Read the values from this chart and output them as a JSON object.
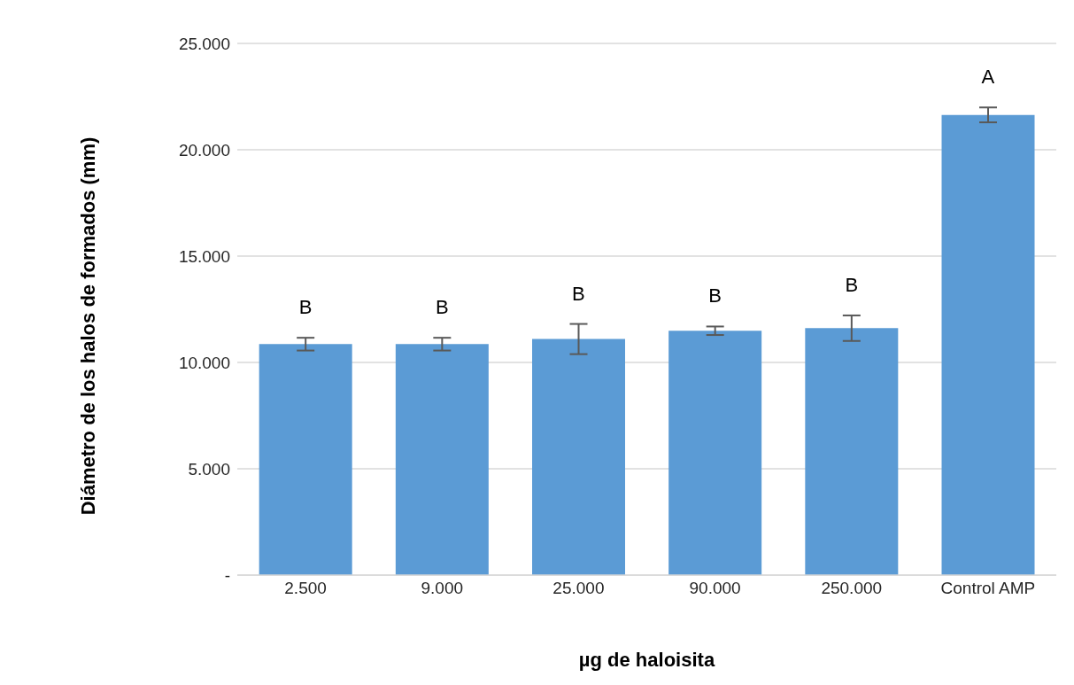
{
  "chart_data": {
    "type": "bar",
    "xlabel": "µg de haloisita",
    "ylabel": "Diámetro de los halos de formados (mm)",
    "categories": [
      "2.500",
      "9.000",
      "25.000",
      "90.000",
      "250.000",
      "Control AMP"
    ],
    "values": [
      10.86,
      10.86,
      11.1,
      11.49,
      11.61,
      21.64
    ],
    "errors": [
      0.3,
      0.3,
      0.71,
      0.2,
      0.6,
      0.35
    ],
    "color": "#5b9bd5",
    "ylim": [
      0,
      25
    ],
    "yticks": [
      {
        "value": 0,
        "label": "-"
      },
      {
        "value": 5,
        "label": "5.000"
      },
      {
        "value": 10,
        "label": "10.000"
      },
      {
        "value": 15,
        "label": "15.000"
      },
      {
        "value": 20,
        "label": "20.000"
      },
      {
        "value": 25,
        "label": "25.000"
      }
    ],
    "grid": "y",
    "legend": false,
    "annotations": [
      "B",
      "B",
      "B",
      "B",
      "B",
      "A"
    ]
  }
}
